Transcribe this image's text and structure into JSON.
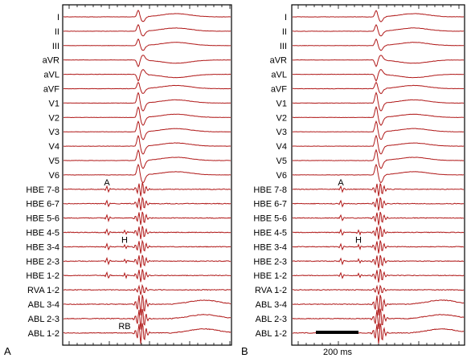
{
  "panels": [
    {
      "id": "A",
      "label": "A",
      "leads": [
        "I",
        "II",
        "III",
        "aVR",
        "aVL",
        "aVF",
        "V1",
        "V2",
        "V3",
        "V4",
        "V5",
        "V6",
        "HBE 7-8",
        "HBE 6-7",
        "HBE 5-6",
        "HBE 4-5",
        "HBE 3-4",
        "HBE 2-3",
        "HBE 1-2",
        "RVA 1-2",
        "ABL 3-4",
        "ABL 2-3",
        "ABL 1-2"
      ],
      "annotations": [
        {
          "text": "A",
          "lead": "V6"
        },
        {
          "text": "H",
          "lead": "HBE 4-5"
        },
        {
          "text": "RB",
          "lead": "ABL 2-3"
        }
      ]
    },
    {
      "id": "B",
      "label": "B",
      "leads": [
        "I",
        "II",
        "III",
        "aVR",
        "aVL",
        "aVF",
        "V1",
        "V2",
        "V3",
        "V4",
        "V5",
        "V6",
        "HBE 7-8",
        "HBE 6-7",
        "HBE 5-6",
        "HBE 4-5",
        "HBE 3-4",
        "HBE 2-3",
        "HBE 1-2",
        "RVA 1-2",
        "ABL 3-4",
        "ABL 2-3",
        "ABL 1-2"
      ],
      "annotations": [
        {
          "text": "A",
          "lead": "V6"
        },
        {
          "text": "H",
          "lead": "HBE 4-5"
        }
      ],
      "scale_bar": "200 ms"
    }
  ],
  "trace_color": "#b01818"
}
